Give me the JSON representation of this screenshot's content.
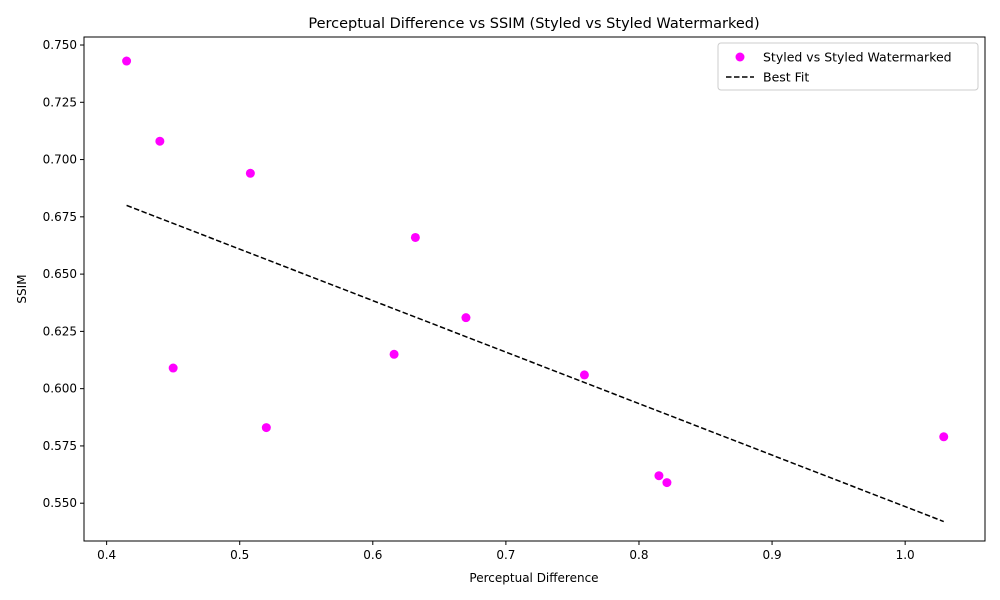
{
  "chart_data": {
    "type": "scatter",
    "title": "Perceptual Difference vs SSIM (Styled vs Styled Watermarked)",
    "xlabel": "Perceptual Difference",
    "ylabel": "SSIM",
    "xlim": [
      0.383,
      1.06
    ],
    "ylim": [
      0.5335,
      0.7535
    ],
    "xticks": [
      0.4,
      0.5,
      0.6,
      0.7,
      0.8,
      0.9,
      1.0
    ],
    "xtick_labels": [
      "0.4",
      "0.5",
      "0.6",
      "0.7",
      "0.8",
      "0.9",
      "1.0"
    ],
    "yticks": [
      0.55,
      0.575,
      0.6,
      0.625,
      0.65,
      0.675,
      0.7,
      0.725,
      0.75
    ],
    "ytick_labels": [
      "0.550",
      "0.575",
      "0.600",
      "0.625",
      "0.650",
      "0.675",
      "0.700",
      "0.725",
      "0.750"
    ],
    "grid": false,
    "legend_position": "top-right",
    "series": [
      {
        "name": "Styled vs Styled Watermarked",
        "kind": "scatter",
        "color": "#ff00ff",
        "points": [
          {
            "x": 0.415,
            "y": 0.743
          },
          {
            "x": 0.44,
            "y": 0.708
          },
          {
            "x": 0.45,
            "y": 0.609
          },
          {
            "x": 0.508,
            "y": 0.694
          },
          {
            "x": 0.52,
            "y": 0.583
          },
          {
            "x": 0.616,
            "y": 0.615
          },
          {
            "x": 0.632,
            "y": 0.666
          },
          {
            "x": 0.67,
            "y": 0.631
          },
          {
            "x": 0.759,
            "y": 0.606
          },
          {
            "x": 0.815,
            "y": 0.562
          },
          {
            "x": 0.821,
            "y": 0.559
          },
          {
            "x": 1.029,
            "y": 0.579
          }
        ]
      },
      {
        "name": "Best Fit",
        "kind": "line",
        "color": "#000000",
        "dash": "dashed",
        "points": [
          {
            "x": 0.415,
            "y": 0.68
          },
          {
            "x": 1.029,
            "y": 0.542
          }
        ]
      }
    ]
  }
}
